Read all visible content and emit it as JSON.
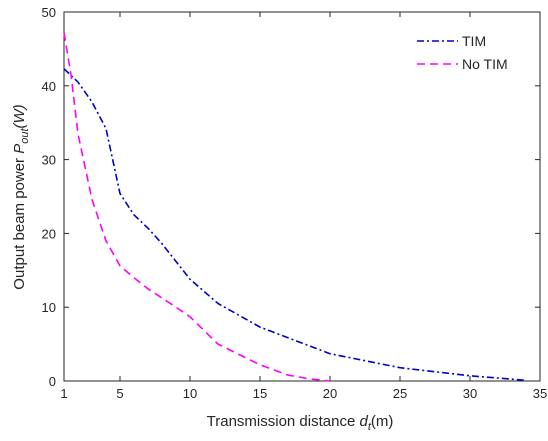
{
  "chart_data": {
    "type": "line",
    "xlabel": {
      "main": "Transmission distance ",
      "sym": "d",
      "sub": "t",
      "tail": "(m)"
    },
    "ylabel": {
      "main": "Output beam power ",
      "sym": "P",
      "sub": "out",
      "tail": "(W)"
    },
    "xlim": [
      1,
      35
    ],
    "ylim": [
      0,
      50
    ],
    "xticks": [
      1,
      5,
      10,
      15,
      20,
      25,
      30,
      35
    ],
    "yticks": [
      0,
      10,
      20,
      30,
      40,
      50
    ],
    "grid": false,
    "legend_position": "top-right",
    "series": [
      {
        "name": "TIM",
        "color": "#0000cc",
        "dash": "dashdot",
        "x": [
          1,
          2,
          3,
          4,
          5,
          6,
          7,
          8,
          10,
          12,
          15,
          20,
          25,
          30,
          34
        ],
        "y": [
          42.3,
          40.5,
          37.8,
          34.2,
          25.4,
          22.5,
          20.7,
          18.6,
          13.8,
          10.5,
          7.3,
          3.7,
          1.8,
          0.7,
          0.1
        ]
      },
      {
        "name": "No TIM",
        "color": "#ff00ff",
        "dash": "dashed",
        "x": [
          1,
          1.5,
          2,
          3,
          4,
          5,
          6,
          7,
          9,
          10,
          12,
          15,
          17,
          18.5,
          20
        ],
        "y": [
          47.2,
          41.5,
          33.5,
          24.6,
          19.0,
          15.6,
          14.0,
          12.5,
          10.0,
          8.7,
          5.0,
          2.2,
          0.8,
          0.3,
          0.0
        ]
      }
    ]
  }
}
